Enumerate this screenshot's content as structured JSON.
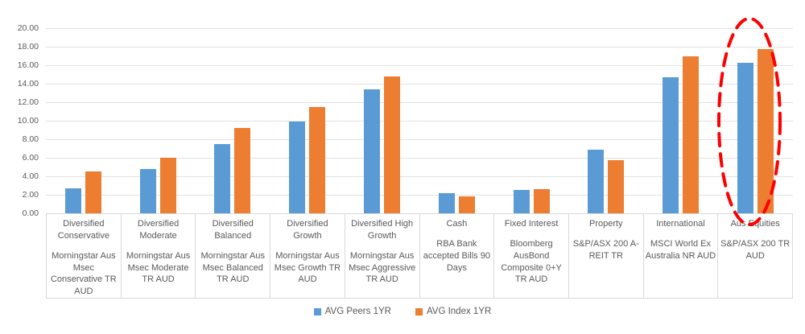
{
  "chart_data": {
    "type": "bar",
    "title": "",
    "xlabel": "",
    "ylabel": "",
    "ylim": [
      0,
      20
    ],
    "ytick_step": 2,
    "ytick_labels": [
      "20.00",
      "18.00",
      "16.00",
      "14.00",
      "12.00",
      "10.00",
      "8.00",
      "6.00",
      "4.00",
      "2.00",
      "0.00"
    ],
    "grid": "horizontal",
    "legend_position": "bottom-center",
    "categories": [
      {
        "label": "Diversified Conservative",
        "sublabel": "Morningstar Aus Msec Conservative TR AUD"
      },
      {
        "label": "Diversified Moderate",
        "sublabel": "Morningstar Aus Msec Moderate TR AUD"
      },
      {
        "label": "Diversified Balanced",
        "sublabel": "Morningstar Aus Msec Balanced TR AUD"
      },
      {
        "label": "Diversified Growth",
        "sublabel": "Morningstar Aus Msec Growth TR AUD"
      },
      {
        "label": "Diversified High Growth",
        "sublabel": "Morningstar Aus Msec Aggressive TR AUD"
      },
      {
        "label": "Cash",
        "sublabel": "RBA Bank accepted Bills 90 Days"
      },
      {
        "label": "Fixed Interest",
        "sublabel": "Bloomberg AusBond Composite 0+Y TR AUD"
      },
      {
        "label": "Property",
        "sublabel": "S&P/ASX 200 A-REIT TR"
      },
      {
        "label": "International",
        "sublabel": "MSCI World Ex Australia NR AUD"
      },
      {
        "label": "Aus Equities",
        "sublabel": "S&P/ASX 200 TR AUD"
      }
    ],
    "series": [
      {
        "name": "AVG Peers 1YR",
        "color": "#5B9BD5",
        "values": [
          2.7,
          4.8,
          7.5,
          9.9,
          13.4,
          2.2,
          2.5,
          6.9,
          14.7,
          16.3
        ]
      },
      {
        "name": "AVG Index 1YR",
        "color": "#ED7D31",
        "values": [
          4.5,
          6.0,
          9.2,
          11.5,
          14.8,
          1.8,
          2.6,
          5.7,
          17.0,
          17.7
        ]
      }
    ],
    "annotation": {
      "type": "ellipse-highlight",
      "target_category": "Aus Equities",
      "color": "#FF0000",
      "style": "dashed"
    }
  },
  "colors": {
    "grid": "#E2E2E2",
    "axis_text": "#595959",
    "cell_border": "#D9D9D9",
    "background": "#FFFFFF"
  }
}
